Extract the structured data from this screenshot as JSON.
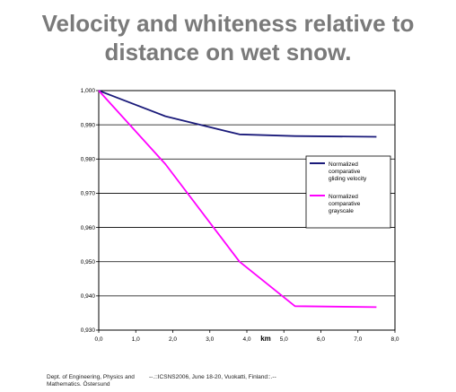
{
  "slide": {
    "title_line1": "Velocity and whiteness relative to",
    "title_line2": "distance on wet snow."
  },
  "footer": {
    "left": "Dept. of Engineering, Physics and Mathematics. Östersund",
    "center": "--.::ICSNS2006, June 18-20, Vuokatti, Finland::.--"
  },
  "chart_data": {
    "type": "line",
    "title": "",
    "xlabel": "km",
    "ylabel": "",
    "xlim": [
      0,
      8
    ],
    "ylim": [
      0.93,
      1.0
    ],
    "x_ticks": [
      "0,0",
      "1,0",
      "2,0",
      "3,0",
      "4,0",
      "5,0",
      "6,0",
      "7,0",
      "8,0"
    ],
    "y_ticks": [
      "1,000",
      "0,990",
      "0,980",
      "0,970",
      "0,960",
      "0,950",
      "0,940",
      "0,930"
    ],
    "grid": "horizontal",
    "legend_position": "right",
    "series": [
      {
        "name": "Normalized comparative gliding velocity",
        "color": "#1a1a7a",
        "x": [
          0,
          1.8,
          3.8,
          5.3,
          7.5
        ],
        "y": [
          1.0,
          0.9925,
          0.9872,
          0.9867,
          0.9865
        ]
      },
      {
        "name": "Normalized comparative grayscale",
        "color": "#ff00ff",
        "x": [
          0,
          1.8,
          3.8,
          5.3,
          7.5
        ],
        "y": [
          1.0,
          0.9785,
          0.95,
          0.937,
          0.9367
        ]
      }
    ]
  }
}
